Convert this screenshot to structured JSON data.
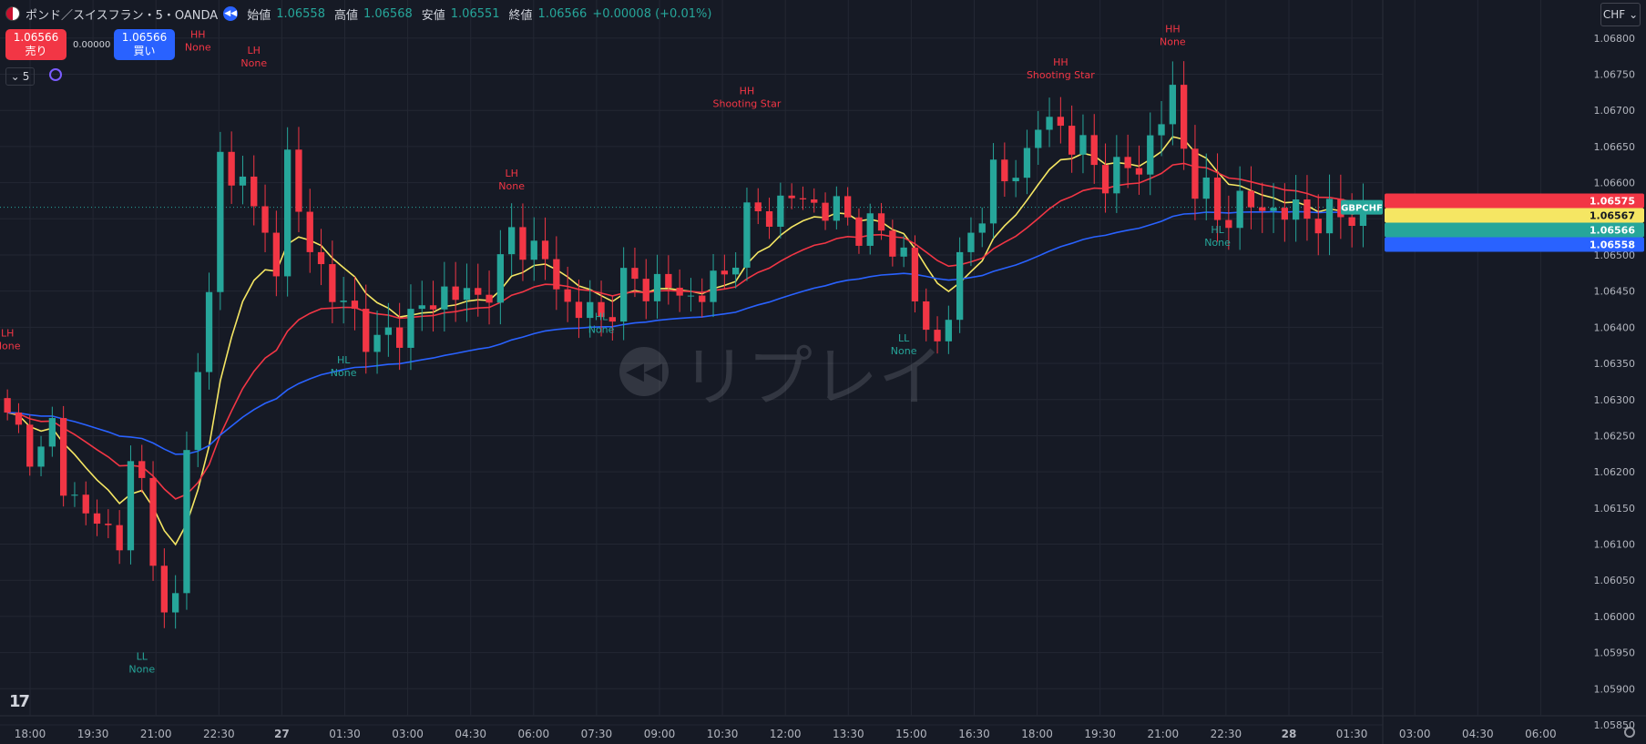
{
  "header": {
    "title": "ポンド／スイスフラン・5・OANDA",
    "ohlc": [
      {
        "label": "始値",
        "value": "1.06558"
      },
      {
        "label": "高値",
        "value": "1.06568"
      },
      {
        "label": "安値",
        "value": "1.06551"
      },
      {
        "label": "終値",
        "value": "1.06566"
      }
    ],
    "change": "+0.00008 (+0.01%)"
  },
  "trade": {
    "sell_price": "1.06566",
    "sell_label": "売り",
    "spread": "0.00000",
    "buy_price": "1.06566",
    "buy_label": "買い"
  },
  "interval_label": "5",
  "currency_label": "CHF",
  "watermark": "リプレイ",
  "logo_text": "17",
  "colors": {
    "up": "#26a69a",
    "down": "#f23645",
    "ma_fast": "#f5e663",
    "ma_mid": "#f23645",
    "ma_slow": "#2962ff",
    "background": "#161a25",
    "grid": "#232733"
  },
  "chart_data": {
    "type": "candlestick",
    "symbol": "GBPCHF",
    "ylim": [
      1.0585,
      1.0683
    ],
    "yticks": [
      "1.06800",
      "1.06750",
      "1.06700",
      "1.06650",
      "1.06600",
      "1.06550",
      "1.06500",
      "1.06450",
      "1.06400",
      "1.06350",
      "1.06300",
      "1.06250",
      "1.06200",
      "1.06150",
      "1.06100",
      "1.06050",
      "1.06000",
      "1.05950",
      "1.05900",
      "1.05850"
    ],
    "xticks": [
      "18:00",
      "19:30",
      "21:00",
      "22:30",
      "27",
      "01:30",
      "03:00",
      "04:30",
      "06:00",
      "07:30",
      "09:00",
      "10:30",
      "12:00",
      "13:30",
      "15:00",
      "16:30",
      "18:00",
      "19:30",
      "21:00",
      "22:30",
      "28",
      "01:30",
      "03:00",
      "04:30",
      "06:00"
    ],
    "bold_xticks": [
      "27",
      "28"
    ],
    "price_tags": [
      {
        "value": "1.06575",
        "color": "#f23645",
        "text_color": "#ffffff",
        "level": 1.06575
      },
      {
        "value": "1.06567",
        "color": "#f5e663",
        "text_color": "#131722",
        "level": 1.06567
      },
      {
        "value": "1.06566",
        "color": "#26a69a",
        "text_color": "#ffffff",
        "level": 1.06566
      },
      {
        "value": "1.06558",
        "color": "#2962ff",
        "text_color": "#ffffff",
        "level": 1.06558
      }
    ],
    "symbol_tag": "GBPCHF",
    "last_price": 1.06566,
    "anchors": [
      [
        0,
        1.0627
      ],
      [
        3,
        1.0622
      ],
      [
        4,
        1.0626
      ],
      [
        5,
        1.0619
      ],
      [
        6,
        1.0616
      ],
      [
        7,
        1.0614
      ],
      [
        8,
        1.0613
      ],
      [
        9,
        1.0612
      ],
      [
        10,
        1.0611
      ],
      [
        11,
        1.062
      ],
      [
        12,
        1.0618
      ],
      [
        13,
        1.061
      ],
      [
        14,
        1.0599
      ],
      [
        15,
        1.0602
      ],
      [
        16,
        1.0625
      ],
      [
        17,
        1.0633
      ],
      [
        18,
        1.0645
      ],
      [
        19,
        1.0664
      ],
      [
        20,
        1.0659
      ],
      [
        21,
        1.0663
      ],
      [
        22,
        1.0655
      ],
      [
        23,
        1.0652
      ],
      [
        24,
        1.065
      ],
      [
        25,
        1.0663
      ],
      [
        26,
        1.0655
      ],
      [
        27,
        1.0652
      ],
      [
        29,
        1.0644
      ],
      [
        31,
        1.0642
      ],
      [
        32,
        1.0639
      ],
      [
        33,
        1.0637
      ],
      [
        34,
        1.0639
      ],
      [
        36,
        1.0641
      ],
      [
        39,
        1.0645
      ],
      [
        42,
        1.0644
      ],
      [
        44,
        1.0648
      ],
      [
        45,
        1.0653
      ],
      [
        46,
        1.0652
      ],
      [
        48,
        1.0649
      ],
      [
        50,
        1.0643
      ],
      [
        52,
        1.0642
      ],
      [
        53,
        1.0641
      ],
      [
        55,
        1.0646
      ],
      [
        58,
        1.0646
      ],
      [
        61,
        1.0644
      ],
      [
        64,
        1.0647
      ],
      [
        66,
        1.0655
      ],
      [
        68,
        1.0656
      ],
      [
        70,
        1.0658
      ],
      [
        72,
        1.0657
      ],
      [
        74,
        1.0656
      ],
      [
        76,
        1.0654
      ],
      [
        78,
        1.0653
      ],
      [
        80,
        1.065
      ],
      [
        81,
        1.0644
      ],
      [
        82,
        1.0639
      ],
      [
        83,
        1.0638
      ],
      [
        84,
        1.0643
      ],
      [
        85,
        1.0648
      ],
      [
        86,
        1.0653
      ],
      [
        88,
        1.0661
      ],
      [
        89,
        1.066
      ],
      [
        91,
        1.0664
      ],
      [
        92,
        1.0668
      ],
      [
        94,
        1.0668
      ],
      [
        96,
        1.0664
      ],
      [
        98,
        1.0661
      ],
      [
        100,
        1.0662
      ],
      [
        101,
        1.0662
      ],
      [
        102,
        1.0666
      ],
      [
        104,
        1.0672
      ],
      [
        105,
        1.0665
      ],
      [
        106,
        1.066
      ],
      [
        107,
        1.0658
      ],
      [
        108,
        1.0655
      ],
      [
        110,
        1.0657
      ],
      [
        114,
        1.0656
      ],
      [
        118,
        1.0655
      ],
      [
        121,
        1.06565
      ]
    ],
    "pivots": [
      {
        "type": "LH",
        "pattern": "None",
        "bar": 0,
        "side": "high",
        "price": 1.06367
      },
      {
        "type": "HH",
        "pattern": "None",
        "bar": 17,
        "side": "high",
        "price": 1.0678
      },
      {
        "type": "LL",
        "pattern": "None",
        "bar": 12,
        "side": "low",
        "price": 1.0594
      },
      {
        "type": "LH",
        "pattern": "None",
        "bar": 22,
        "side": "high",
        "price": 1.06758
      },
      {
        "type": "HL",
        "pattern": "None",
        "bar": 30,
        "side": "low",
        "price": 1.0635
      },
      {
        "type": "LH",
        "pattern": "None",
        "bar": 45,
        "side": "high",
        "price": 1.06588
      },
      {
        "type": "HL",
        "pattern": "None",
        "bar": 53,
        "side": "low",
        "price": 1.0641
      },
      {
        "type": "HH",
        "pattern": "Shooting Star",
        "bar": 66,
        "side": "high",
        "price": 1.06702
      },
      {
        "type": "LL",
        "pattern": "None",
        "bar": 80,
        "side": "low",
        "price": 1.0638
      },
      {
        "type": "HH",
        "pattern": "Shooting Star",
        "bar": 94,
        "side": "high",
        "price": 1.06742
      },
      {
        "type": "HH",
        "pattern": "None",
        "bar": 104,
        "side": "high",
        "price": 1.06788
      },
      {
        "type": "HL",
        "pattern": "None",
        "bar": 108,
        "side": "low",
        "price": 1.0653
      }
    ],
    "bar_count": 122
  }
}
